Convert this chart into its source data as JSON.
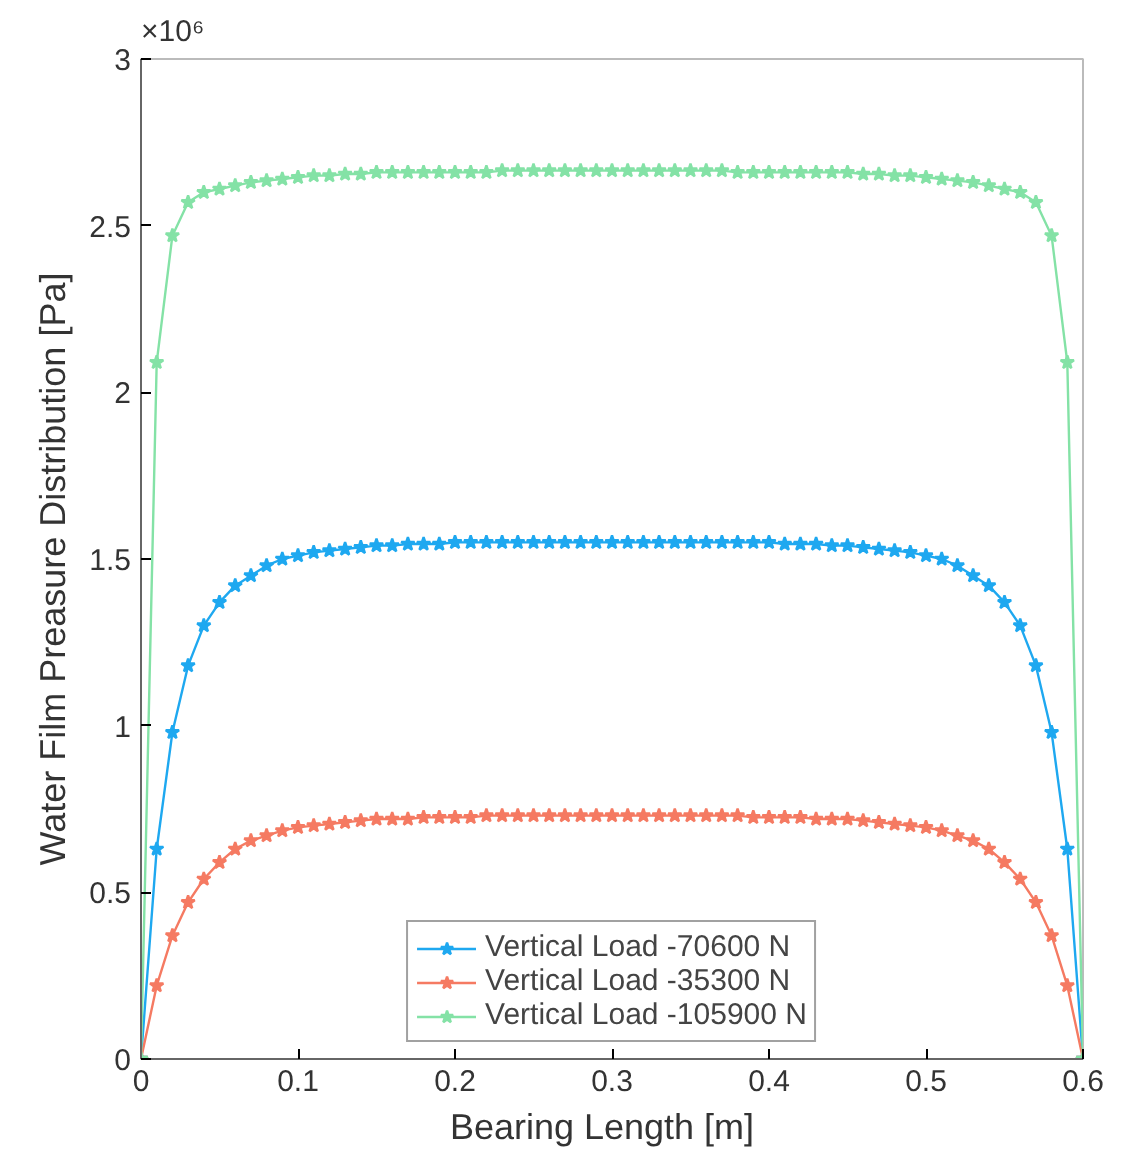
{
  "chart_data": {
    "type": "line",
    "xlabel": "Bearing Length   [m]",
    "ylabel": "Water Film Preasure Distribution   [Pa]",
    "annotations": [
      "×10⁶"
    ],
    "x": [
      0,
      0.01,
      0.02,
      0.03,
      0.04,
      0.05,
      0.06,
      0.07,
      0.08,
      0.09,
      0.1,
      0.11,
      0.12,
      0.13,
      0.14,
      0.15,
      0.16,
      0.17,
      0.18,
      0.19,
      0.2,
      0.21,
      0.22,
      0.23,
      0.24,
      0.25,
      0.26,
      0.27,
      0.28,
      0.29,
      0.3,
      0.31,
      0.32,
      0.33,
      0.34,
      0.35,
      0.36,
      0.37,
      0.38,
      0.39,
      0.4,
      0.41,
      0.42,
      0.43,
      0.44,
      0.45,
      0.46,
      0.47,
      0.48,
      0.49,
      0.5,
      0.51,
      0.52,
      0.53,
      0.54,
      0.55,
      0.56,
      0.57,
      0.58,
      0.59,
      0.6
    ],
    "series": [
      {
        "name": "Vertical Load -70600 N",
        "color": "#1ea8f0",
        "values": [
          0,
          0.63,
          0.98,
          1.18,
          1.3,
          1.37,
          1.42,
          1.45,
          1.48,
          1.5,
          1.51,
          1.52,
          1.525,
          1.53,
          1.535,
          1.54,
          1.54,
          1.545,
          1.545,
          1.545,
          1.55,
          1.55,
          1.55,
          1.55,
          1.55,
          1.55,
          1.55,
          1.55,
          1.55,
          1.55,
          1.55,
          1.55,
          1.55,
          1.55,
          1.55,
          1.55,
          1.55,
          1.55,
          1.55,
          1.55,
          1.55,
          1.545,
          1.545,
          1.545,
          1.54,
          1.54,
          1.535,
          1.53,
          1.525,
          1.52,
          1.51,
          1.5,
          1.48,
          1.45,
          1.42,
          1.37,
          1.3,
          1.18,
          0.98,
          0.63,
          0
        ]
      },
      {
        "name": "Vertical Load -35300 N",
        "color": "#f57a62",
        "values": [
          0,
          0.22,
          0.37,
          0.47,
          0.54,
          0.59,
          0.63,
          0.655,
          0.67,
          0.685,
          0.695,
          0.7,
          0.705,
          0.71,
          0.715,
          0.72,
          0.72,
          0.72,
          0.725,
          0.725,
          0.725,
          0.725,
          0.73,
          0.73,
          0.73,
          0.73,
          0.73,
          0.73,
          0.73,
          0.73,
          0.73,
          0.73,
          0.73,
          0.73,
          0.73,
          0.73,
          0.73,
          0.73,
          0.73,
          0.725,
          0.725,
          0.725,
          0.725,
          0.72,
          0.72,
          0.72,
          0.715,
          0.71,
          0.705,
          0.7,
          0.695,
          0.685,
          0.67,
          0.655,
          0.63,
          0.59,
          0.54,
          0.47,
          0.37,
          0.22,
          0
        ]
      },
      {
        "name": "Vertical Load -105900 N",
        "color": "#84e2a6",
        "values": [
          0,
          2.09,
          2.47,
          2.57,
          2.6,
          2.61,
          2.62,
          2.63,
          2.635,
          2.64,
          2.645,
          2.65,
          2.65,
          2.655,
          2.655,
          2.66,
          2.66,
          2.66,
          2.66,
          2.66,
          2.66,
          2.66,
          2.66,
          2.665,
          2.665,
          2.665,
          2.665,
          2.665,
          2.665,
          2.665,
          2.665,
          2.665,
          2.665,
          2.665,
          2.665,
          2.665,
          2.665,
          2.665,
          2.66,
          2.66,
          2.66,
          2.66,
          2.66,
          2.66,
          2.66,
          2.66,
          2.655,
          2.655,
          2.65,
          2.65,
          2.645,
          2.64,
          2.635,
          2.63,
          2.62,
          2.61,
          2.6,
          2.57,
          2.47,
          2.09,
          0
        ]
      }
    ],
    "xlim": [
      0,
      0.6
    ],
    "xticks": [
      0,
      0.1,
      0.2,
      0.3,
      0.4,
      0.5,
      0.6
    ],
    "ylim": [
      0,
      3
    ],
    "yticks": [
      0,
      0.5,
      1,
      1.5,
      2,
      2.5,
      3
    ],
    "legend": "bottom",
    "marker": "star",
    "line_style": "solid",
    "grid": false
  }
}
